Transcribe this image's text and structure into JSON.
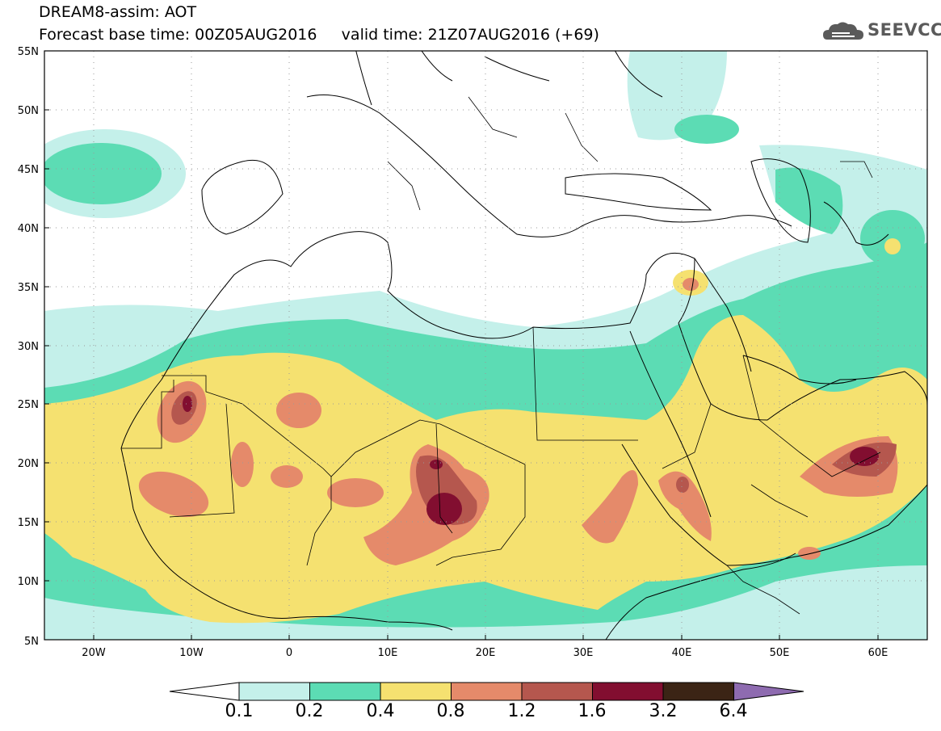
{
  "header": {
    "line1": "DREAM8-assim: AOT",
    "line2": "Forecast base time: 00Z05AUG2016     valid time: 21Z07AUG2016 (+69)",
    "logo_text": "SEEVCCC"
  },
  "map": {
    "variable": "AOT",
    "projection": "lat-lon",
    "extent": {
      "lon": [
        -25,
        65
      ],
      "lat": [
        5,
        55
      ]
    },
    "lat_ticks": [
      "5N",
      "10N",
      "15N",
      "20N",
      "25N",
      "30N",
      "35N",
      "40N",
      "45N",
      "50N",
      "55N"
    ],
    "lon_ticks": [
      "20W",
      "10W",
      "0",
      "10E",
      "20E",
      "30E",
      "40E",
      "50E",
      "60E"
    ],
    "features": [
      "coastlines",
      "country borders",
      "dotted lat/lon grid"
    ]
  },
  "colorbar": {
    "labels": [
      "0.1",
      "0.2",
      "0.4",
      "0.8",
      "1.2",
      "1.6",
      "3.2",
      "6.4"
    ],
    "colors": [
      "#c4f0ea",
      "#5cdcb4",
      "#f5e170",
      "#e58a6a",
      "#b5574e",
      "#820e30",
      "#3b2415",
      "#8e6bb0"
    ],
    "below_color": "#ffffff"
  },
  "colors": {
    "aot_0_1": "#c4f0ea",
    "aot_0_2": "#5cdcb4",
    "aot_0_4": "#f5e170",
    "aot_0_8": "#e58a6a",
    "aot_1_2": "#b5574e",
    "aot_1_6": "#820e30",
    "aot_3_2": "#3b2415",
    "aot_6_4": "#8e6bb0"
  }
}
